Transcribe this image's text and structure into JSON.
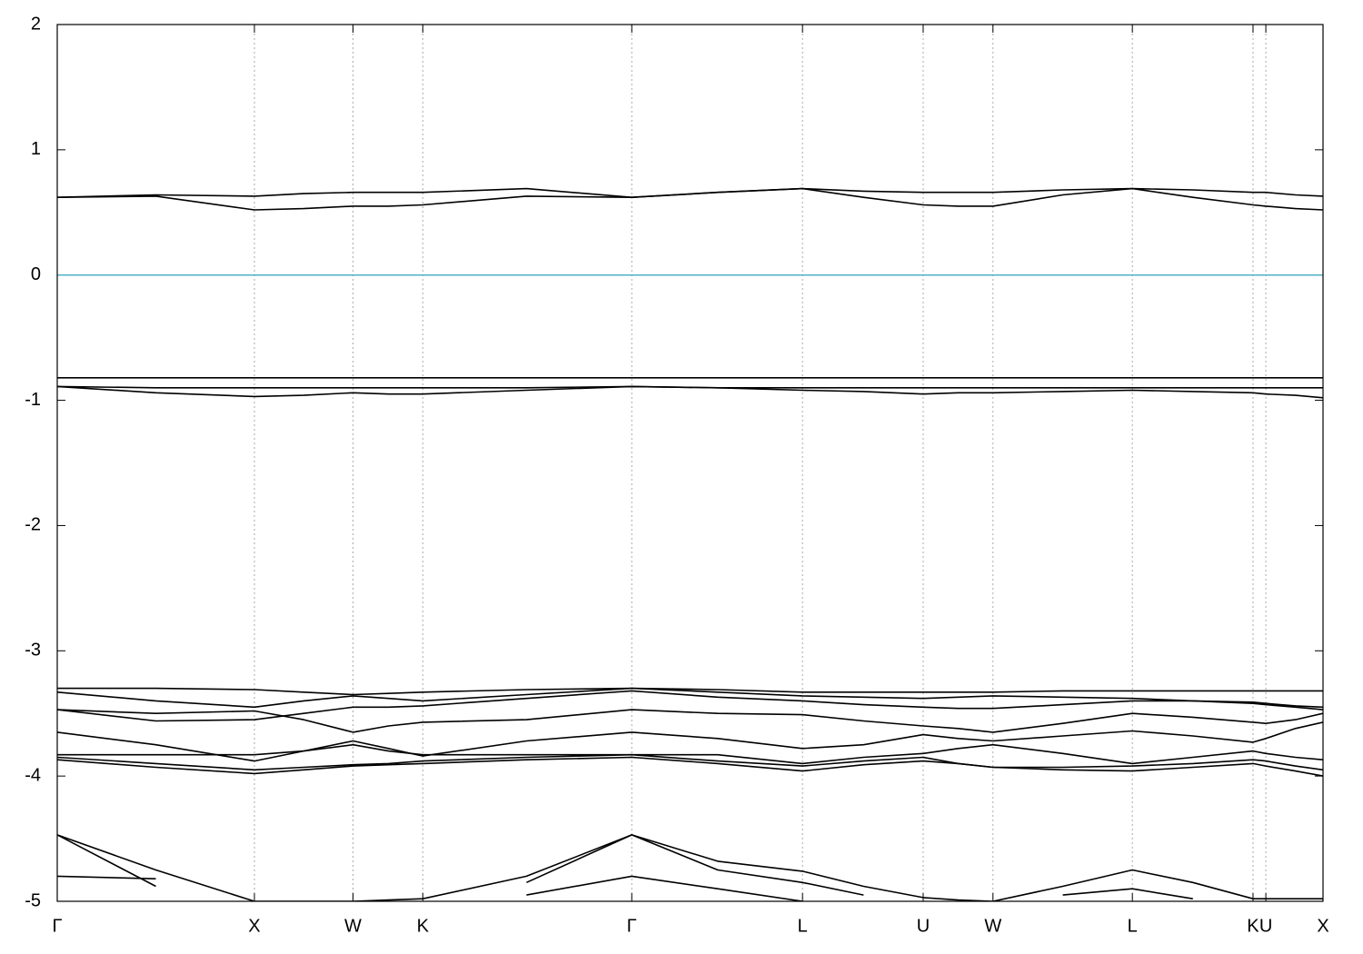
{
  "chart_data": {
    "type": "line",
    "x": [
      0,
      0.5,
      1,
      1.25,
      1.5,
      1.68,
      1.854,
      2.38,
      2.914,
      3.35,
      3.78,
      4.09,
      4.392,
      4.57,
      4.746,
      5.1,
      5.453,
      5.76,
      6.065,
      6.13,
      6.28,
      6.42
    ],
    "xlim": [
      0,
      6.42
    ],
    "xticks": [
      {
        "value": 0,
        "label": "Γ"
      },
      {
        "value": 1,
        "label": "X"
      },
      {
        "value": 1.5,
        "label": "W"
      },
      {
        "value": 1.854,
        "label": "K"
      },
      {
        "value": 2.914,
        "label": "Γ"
      },
      {
        "value": 3.78,
        "label": "L"
      },
      {
        "value": 4.392,
        "label": "U"
      },
      {
        "value": 4.746,
        "label": "W"
      },
      {
        "value": 5.453,
        "label": "L"
      },
      {
        "value": 6.065,
        "label": "K"
      },
      {
        "value": 6.13,
        "label": "U"
      },
      {
        "value": 6.42,
        "label": "X"
      }
    ],
    "ylim": [
      -5,
      2
    ],
    "yticks": [
      2,
      1,
      0,
      -1,
      -2,
      -3,
      -4,
      -5
    ],
    "xgrid": true,
    "hline": {
      "y": 0,
      "color": "#4fb0c6"
    },
    "series": [
      {
        "color": "#000000",
        "values": [
          0.62,
          0.63,
          0.52,
          0.53,
          0.55,
          0.55,
          0.56,
          0.63,
          0.62,
          0.66,
          0.69,
          0.62,
          0.56,
          0.55,
          0.55,
          0.64,
          0.69,
          0.62,
          0.56,
          0.55,
          0.53,
          0.52
        ]
      },
      {
        "color": "#000000",
        "values": [
          0.62,
          0.64,
          0.63,
          0.65,
          0.66,
          0.66,
          0.66,
          0.69,
          0.62,
          0.66,
          0.69,
          0.67,
          0.66,
          0.66,
          0.66,
          0.68,
          0.69,
          0.68,
          0.66,
          0.66,
          0.64,
          0.63
        ]
      },
      {
        "color": "#000000",
        "values": [
          -0.82,
          -0.82,
          -0.82,
          -0.82,
          -0.82,
          -0.82,
          -0.82,
          -0.82,
          -0.82,
          -0.82,
          -0.82,
          -0.82,
          -0.82,
          -0.82,
          -0.82,
          -0.82,
          -0.82,
          -0.82,
          -0.82,
          -0.82,
          -0.82,
          -0.82
        ]
      },
      {
        "color": "#000000",
        "values": [
          -0.89,
          -0.9,
          -0.9,
          -0.9,
          -0.9,
          -0.9,
          -0.9,
          -0.9,
          -0.89,
          -0.9,
          -0.9,
          -0.9,
          -0.9,
          -0.9,
          -0.9,
          -0.9,
          -0.9,
          -0.9,
          -0.9,
          -0.9,
          -0.9,
          -0.9
        ]
      },
      {
        "color": "#000000",
        "values": [
          -0.89,
          -0.94,
          -0.97,
          -0.96,
          -0.94,
          -0.95,
          -0.95,
          -0.92,
          -0.89,
          -0.9,
          -0.92,
          -0.93,
          -0.95,
          -0.94,
          -0.94,
          -0.93,
          -0.92,
          -0.93,
          -0.94,
          -0.95,
          -0.96,
          -0.98
        ]
      },
      {
        "color": "#000000",
        "values": [
          -3.3,
          -3.3,
          -3.31,
          -3.33,
          -3.35,
          -3.34,
          -3.33,
          -3.31,
          -3.3,
          -3.31,
          -3.33,
          -3.33,
          -3.33,
          -3.33,
          -3.33,
          -3.32,
          -3.32,
          -3.32,
          -3.32,
          -3.32,
          -3.32,
          -3.32
        ]
      },
      {
        "color": "#000000",
        "values": [
          -3.33,
          -3.4,
          -3.45,
          -3.4,
          -3.36,
          -3.38,
          -3.4,
          -3.35,
          -3.3,
          -3.33,
          -3.36,
          -3.37,
          -3.38,
          -3.37,
          -3.36,
          -3.37,
          -3.38,
          -3.4,
          -3.42,
          -3.43,
          -3.45,
          -3.47
        ]
      },
      {
        "color": "#000000",
        "values": [
          -3.47,
          -3.56,
          -3.55,
          -3.5,
          -3.45,
          -3.45,
          -3.44,
          -3.38,
          -3.32,
          -3.37,
          -3.4,
          -3.43,
          -3.45,
          -3.46,
          -3.46,
          -3.43,
          -3.4,
          -3.4,
          -3.41,
          -3.42,
          -3.44,
          -3.45
        ]
      },
      {
        "color": "#000000",
        "values": [
          -3.47,
          -3.5,
          -3.48,
          -3.55,
          -3.65,
          -3.6,
          -3.57,
          -3.55,
          -3.47,
          -3.5,
          -3.51,
          -3.56,
          -3.6,
          -3.62,
          -3.65,
          -3.58,
          -3.5,
          -3.53,
          -3.57,
          -3.58,
          -3.55,
          -3.5
        ]
      },
      {
        "color": "#000000",
        "values": [
          -3.65,
          -3.75,
          -3.88,
          -3.8,
          -3.72,
          -3.78,
          -3.84,
          -3.72,
          -3.65,
          -3.7,
          -3.78,
          -3.75,
          -3.67,
          -3.7,
          -3.72,
          -3.68,
          -3.64,
          -3.68,
          -3.73,
          -3.7,
          -3.62,
          -3.57
        ]
      },
      {
        "color": "#000000",
        "values": [
          -3.83,
          -3.83,
          -3.83,
          -3.8,
          -3.75,
          -3.8,
          -3.83,
          -3.83,
          -3.83,
          -3.83,
          -3.9,
          -3.85,
          -3.82,
          -3.78,
          -3.75,
          -3.82,
          -3.9,
          -3.85,
          -3.8,
          -3.82,
          -3.85,
          -3.87
        ]
      },
      {
        "color": "#000000",
        "values": [
          -3.85,
          -3.9,
          -3.95,
          -3.93,
          -3.91,
          -3.9,
          -3.88,
          -3.85,
          -3.83,
          -3.88,
          -3.92,
          -3.88,
          -3.85,
          -3.9,
          -3.93,
          -3.93,
          -3.92,
          -3.9,
          -3.87,
          -3.88,
          -3.92,
          -3.95
        ]
      },
      {
        "color": "#000000",
        "values": [
          -3.87,
          -3.93,
          -3.98,
          -3.95,
          -3.92,
          -3.91,
          -3.9,
          -3.87,
          -3.85,
          -3.9,
          -3.96,
          -3.91,
          -3.88,
          -3.9,
          -3.93,
          -3.95,
          -3.96,
          -3.93,
          -3.9,
          -3.92,
          -3.96,
          -4.0
        ]
      },
      {
        "color": "#000000",
        "values": [
          -4.47,
          -4.75,
          -5,
          -5,
          -5,
          -4.99,
          -4.98,
          -4.8,
          -4.47,
          -4.68,
          -4.76,
          -4.88,
          -4.97,
          -4.99,
          -5,
          -4.88,
          -4.75,
          -4.85,
          -4.98,
          -4.98,
          -4.98,
          -4.98
        ]
      },
      {
        "color": "#000000",
        "values": [
          -4.47,
          -4.88,
          null,
          null,
          null,
          null,
          null,
          -4.85,
          -4.47,
          -4.75,
          -4.85,
          -4.95,
          null,
          null,
          null,
          -4.95,
          -4.9,
          -4.98,
          null,
          null,
          null,
          null
        ]
      },
      {
        "color": "#000000",
        "values": [
          -4.8,
          -4.82,
          null,
          null,
          null,
          null,
          null,
          -4.95,
          -4.8,
          -4.9,
          -5,
          null,
          null,
          null,
          null,
          null,
          null,
          null,
          null,
          null,
          null,
          null
        ]
      }
    ]
  }
}
